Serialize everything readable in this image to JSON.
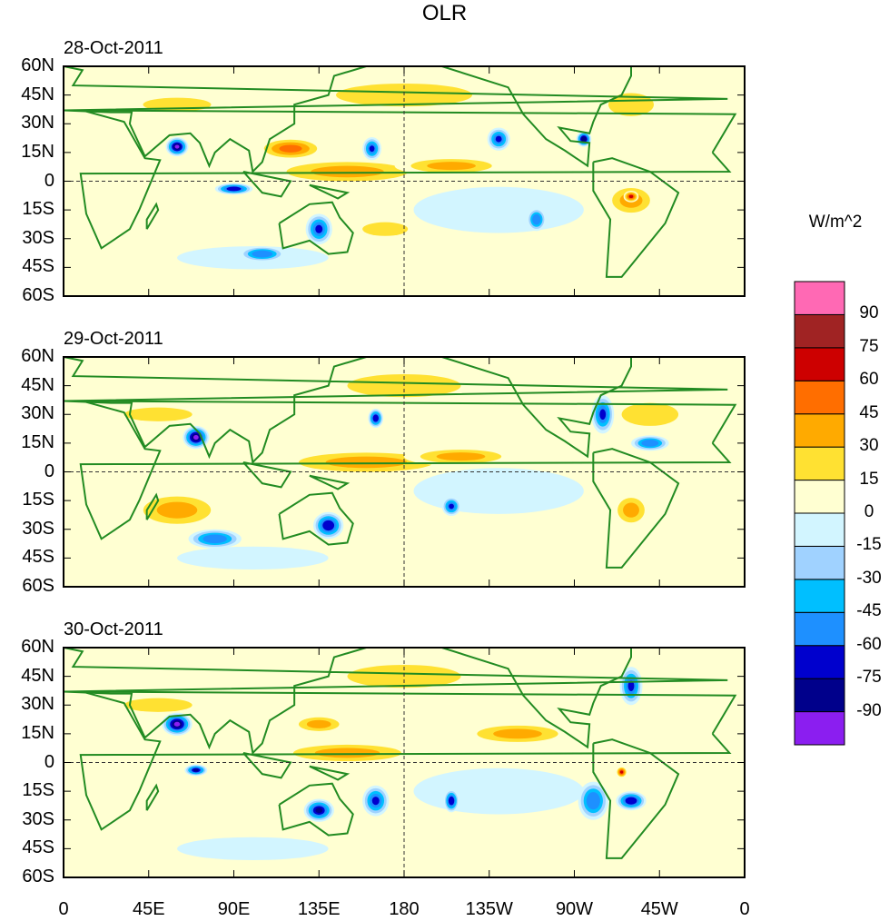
{
  "chart_data": {
    "type": "heatmap",
    "title": "OLR",
    "units": "W/m^2",
    "panels": [
      {
        "date": "28-Oct-2011",
        "features": [
          [
            180,
            45,
            60,
            10,
            20
          ],
          [
            300,
            40,
            20,
            10,
            25
          ],
          [
            60,
            40,
            30,
            6,
            20
          ],
          [
            230,
            -15,
            45,
            12,
            -10
          ],
          [
            100,
            -40,
            40,
            6,
            -15
          ],
          [
            270,
            -35,
            40,
            8,
            10
          ],
          [
            150,
            5,
            45,
            7,
            40
          ],
          [
            205,
            8,
            30,
            5,
            35
          ],
          [
            120,
            17,
            18,
            6,
            45
          ],
          [
            170,
            -25,
            20,
            6,
            25
          ],
          [
            300,
            -10,
            14,
            9,
            35
          ],
          [
            300,
            -8,
            4,
            3,
            65
          ],
          [
            60,
            18,
            6,
            5,
            -95
          ],
          [
            90,
            -4,
            10,
            3,
            -75
          ],
          [
            135,
            -25,
            7,
            8,
            -70
          ],
          [
            230,
            22,
            6,
            6,
            -70
          ],
          [
            163,
            17,
            5,
            6,
            -70
          ],
          [
            275,
            22,
            4,
            4,
            -90
          ],
          [
            105,
            -38,
            12,
            4,
            -60
          ],
          [
            250,
            -20,
            5,
            6,
            -60
          ]
        ]
      },
      {
        "date": "29-Oct-2011",
        "features": [
          [
            180,
            45,
            50,
            10,
            20
          ],
          [
            310,
            30,
            25,
            10,
            25
          ],
          [
            50,
            30,
            30,
            6,
            20
          ],
          [
            230,
            -10,
            45,
            12,
            -10
          ],
          [
            100,
            -45,
            40,
            6,
            -15
          ],
          [
            270,
            -35,
            40,
            8,
            10
          ],
          [
            160,
            5,
            50,
            7,
            40
          ],
          [
            210,
            8,
            30,
            5,
            30
          ],
          [
            60,
            -20,
            25,
            10,
            30
          ],
          [
            300,
            -20,
            10,
            9,
            35
          ],
          [
            70,
            18,
            7,
            6,
            -95
          ],
          [
            140,
            -28,
            8,
            7,
            -75
          ],
          [
            165,
            28,
            4,
            5,
            -75
          ],
          [
            285,
            30,
            6,
            10,
            -70
          ],
          [
            205,
            -18,
            5,
            5,
            -65
          ],
          [
            80,
            -35,
            14,
            5,
            -60
          ],
          [
            310,
            15,
            10,
            4,
            -60
          ]
        ]
      },
      {
        "date": "30-Oct-2011",
        "features": [
          [
            180,
            45,
            50,
            10,
            20
          ],
          [
            240,
            15,
            30,
            6,
            30
          ],
          [
            50,
            30,
            30,
            6,
            20
          ],
          [
            230,
            -15,
            45,
            12,
            -10
          ],
          [
            100,
            -45,
            40,
            6,
            -15
          ],
          [
            270,
            -35,
            40,
            8,
            10
          ],
          [
            150,
            5,
            40,
            6,
            40
          ],
          [
            135,
            20,
            15,
            5,
            35
          ],
          [
            280,
            -20,
            8,
            10,
            -60
          ],
          [
            60,
            20,
            8,
            6,
            -95
          ],
          [
            135,
            -25,
            8,
            6,
            -80
          ],
          [
            165,
            -20,
            7,
            8,
            -70
          ],
          [
            205,
            -20,
            4,
            6,
            -75
          ],
          [
            295,
            -5,
            3,
            3,
            70
          ],
          [
            300,
            -20,
            8,
            5,
            -75
          ],
          [
            300,
            40,
            6,
            10,
            -65
          ],
          [
            70,
            -4,
            6,
            3,
            -80
          ]
        ]
      }
    ],
    "levels": [
      -90,
      -75,
      -60,
      -45,
      -30,
      -15,
      0,
      15,
      30,
      45,
      60,
      75,
      90
    ],
    "colors": [
      "#8b1ef0",
      "#00008b",
      "#0000cd",
      "#1e90ff",
      "#00bfff",
      "#a0d2ff",
      "#d2f5ff",
      "#ffffd2",
      "#ffe132",
      "#ffaa00",
      "#ff6e00",
      "#cd0000",
      "#a02323",
      "#ff69b4"
    ],
    "lat_ticks": [
      "60N",
      "45N",
      "30N",
      "15N",
      "0",
      "15S",
      "30S",
      "45S",
      "60S"
    ],
    "lon_ticks": [
      "0",
      "45E",
      "90E",
      "135E",
      "180",
      "135W",
      "90W",
      "45W",
      "0"
    ]
  }
}
